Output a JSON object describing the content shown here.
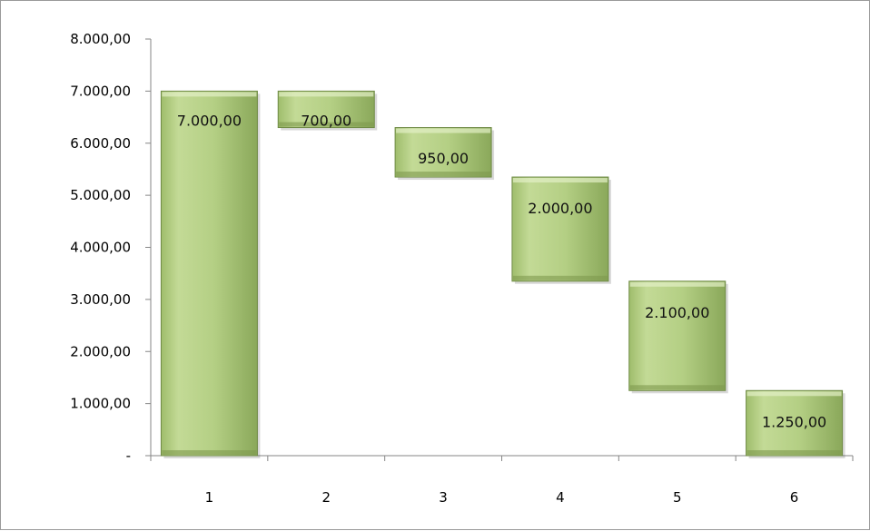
{
  "chart_data": {
    "type": "bar",
    "subtype": "waterfall",
    "categories": [
      "1",
      "2",
      "3",
      "4",
      "5",
      "6"
    ],
    "series": [
      {
        "values": [
          7000,
          700,
          950,
          2000,
          2100,
          1250
        ]
      }
    ],
    "data_labels": [
      "7.000,00",
      "700,00",
      "950,00",
      "2.000,00",
      "2.100,00",
      "1.250,00"
    ],
    "ylim": [
      0,
      8000
    ],
    "y_ticks": [
      0,
      1000,
      2000,
      3000,
      4000,
      5000,
      6000,
      7000,
      8000
    ],
    "y_tick_labels": [
      "-",
      "1.000,00",
      "2.000,00",
      "3.000,00",
      "4.000,00",
      "5.000,00",
      "6.000,00",
      "7.000,00",
      "8.000,00"
    ],
    "grid": false,
    "legend": "none",
    "title": "",
    "xlabel": "",
    "ylabel": "",
    "colors": {
      "bar_light": "#c6dc9a",
      "bar_mid": "#a8c67a",
      "bar_dark": "#7f9a4f",
      "bar_edge": "#6f8a45"
    }
  }
}
